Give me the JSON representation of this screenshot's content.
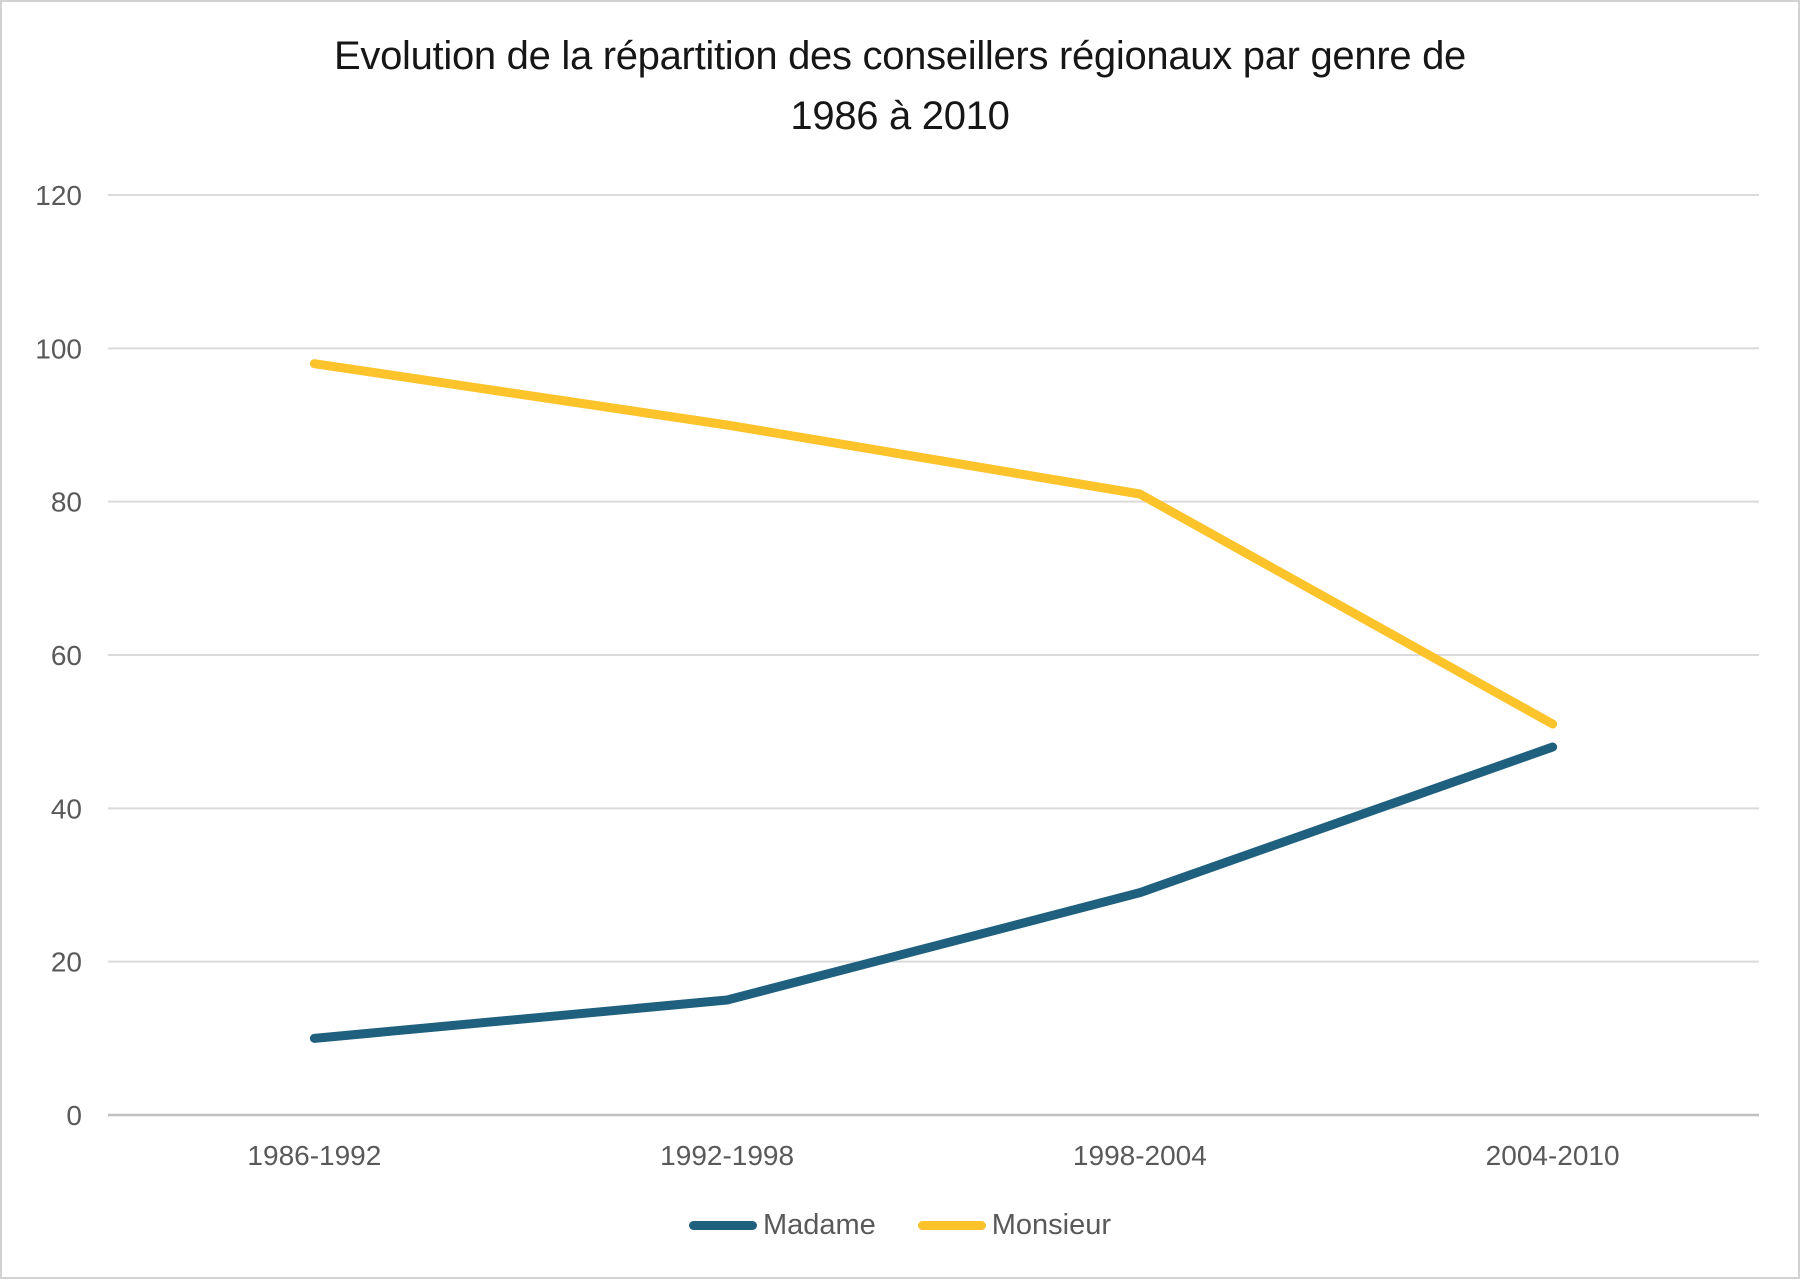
{
  "title": {
    "text": "Evolution de la répartition des conseillers régionaux par genre de 1986 à 2010",
    "lines": [
      "Evolution de la répartition des conseillers régionaux par genre de",
      "1986 à 2010"
    ]
  },
  "chart_data": {
    "type": "line",
    "title": "Evolution de la répartition des conseillers régionaux par genre de 1986 à 2010",
    "categories": [
      "1986-1992",
      "1992-1998",
      "1998-2004",
      "2004-2010"
    ],
    "series": [
      {
        "name": "Madame",
        "color": "#1F607F",
        "values": [
          10,
          15,
          29,
          48
        ]
      },
      {
        "name": "Monsieur",
        "color": "#FDC32B",
        "values": [
          98,
          90,
          81,
          51
        ]
      }
    ],
    "xlabel": "",
    "ylabel": "",
    "ylim": [
      0,
      120
    ],
    "yticks": [
      0,
      20,
      40,
      60,
      80,
      100,
      120
    ],
    "grid": true,
    "legend_position": "bottom"
  },
  "style": {
    "title_color": "#161616",
    "axis_text_color": "#595959",
    "gridline_color": "#DADADA",
    "axis_line_color": "#C0C0C0",
    "background_color": "#FFFFFF",
    "border_color": "#D2D2D2"
  }
}
